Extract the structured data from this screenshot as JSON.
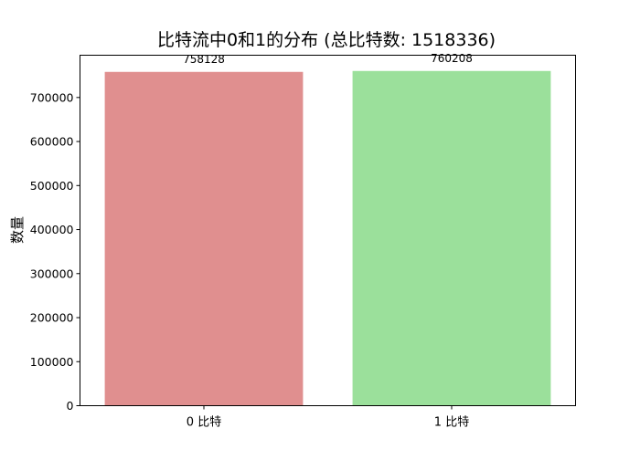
{
  "chart_data": {
    "type": "bar",
    "title": "比特流中0和1的分布 (总比特数: 1518336)",
    "xlabel": "",
    "ylabel": "数量",
    "categories": [
      "0 比特",
      "1 比特"
    ],
    "values": [
      758128,
      760208
    ],
    "value_labels": [
      "758128",
      "760208"
    ],
    "colors": [
      "#e08f8f",
      "#9be09b"
    ],
    "ylim": [
      0,
      796000
    ],
    "yticks": [
      0,
      100000,
      200000,
      300000,
      400000,
      500000,
      600000,
      700000
    ],
    "ytick_labels": [
      "0",
      "100000",
      "200000",
      "300000",
      "400000",
      "500000",
      "600000",
      "700000"
    ],
    "grid": false,
    "legend": "none"
  }
}
